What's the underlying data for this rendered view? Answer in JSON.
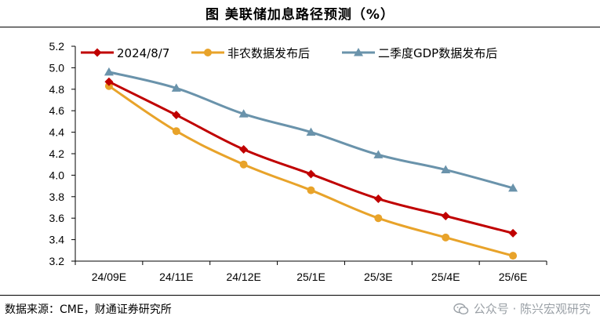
{
  "title": "图 美联储加息路径预测（%）",
  "source": "数据来源：CME，财通证券研究所",
  "watermark": "公众号 · 陈兴宏观研究",
  "watermark_icon": "wechat-icon",
  "chart_data": {
    "type": "line",
    "title": "图 美联储加息路径预测（%）",
    "xlabel": "",
    "ylabel": "",
    "categories": [
      "24/09E",
      "24/11E",
      "24/12E",
      "25/1E",
      "25/3E",
      "25/4E",
      "25/6E"
    ],
    "ylim": [
      3.2,
      5.2
    ],
    "yticks": [
      "5.2",
      "5.0",
      "4.8",
      "4.6",
      "4.4",
      "4.2",
      "4.0",
      "3.8",
      "3.6",
      "3.4",
      "3.2"
    ],
    "legend_position": "top",
    "series": [
      {
        "name": "2024/8/7",
        "color": "#c00000",
        "marker": "diamond",
        "values": [
          4.87,
          4.56,
          4.24,
          4.01,
          3.78,
          3.62,
          3.46
        ]
      },
      {
        "name": "非农数据发布后",
        "color": "#e8a32a",
        "marker": "circle",
        "values": [
          4.83,
          4.41,
          4.1,
          3.86,
          3.6,
          3.42,
          3.25
        ]
      },
      {
        "name": "二季度GDP数据发布后",
        "color": "#6a93ab",
        "marker": "triangle",
        "values": [
          4.96,
          4.81,
          4.57,
          4.4,
          4.19,
          4.05,
          3.88
        ]
      }
    ]
  }
}
